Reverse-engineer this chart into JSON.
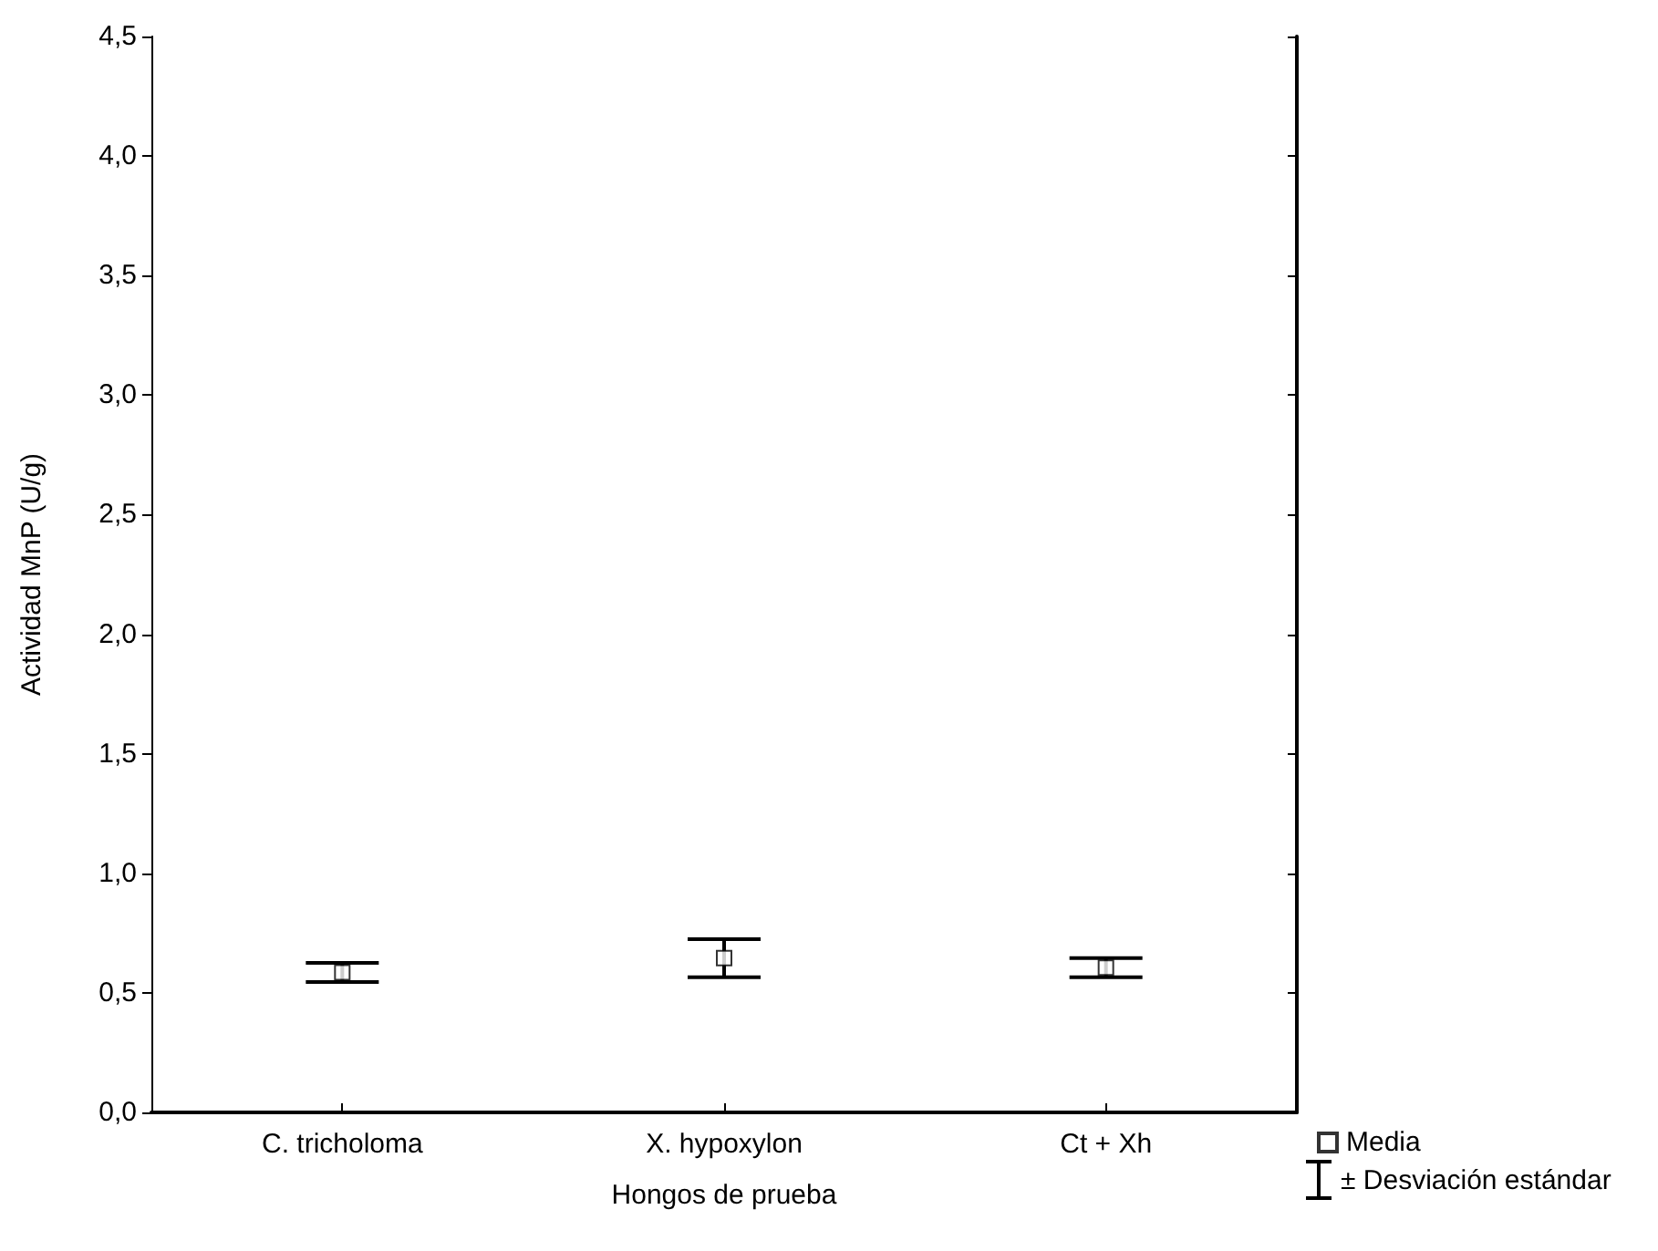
{
  "chart_data": {
    "type": "scatter",
    "xlabel": "Hongos de prueba",
    "ylabel": "Actividad MnP (U/g)",
    "categories": [
      "C. tricholoma",
      "X. hypoxylon",
      "Ct + Xh"
    ],
    "series": [
      {
        "name": "Media",
        "color": "#000000",
        "values": [
          0.585,
          0.645,
          0.605
        ],
        "errors": [
          0.04,
          0.08,
          0.04
        ]
      }
    ],
    "annotations": [
      "± Desviación estándar"
    ],
    "marker": "square",
    "legend": "bottom right",
    "grid": false,
    "ylim": [
      0,
      4.5
    ],
    "yticks": [
      {
        "value": 0,
        "label": "0,0"
      },
      {
        "value": 0.5,
        "label": "0,5"
      },
      {
        "value": 1,
        "label": "1,0"
      },
      {
        "value": 1.5,
        "label": "1,5"
      },
      {
        "value": 2,
        "label": "2,0"
      },
      {
        "value": 2.5,
        "label": "2,5"
      },
      {
        "value": 3,
        "label": "3,0"
      },
      {
        "value": 3.5,
        "label": "3,5"
      },
      {
        "value": 4,
        "label": "4,0"
      },
      {
        "value": 4.5,
        "label": "4,5"
      }
    ]
  }
}
